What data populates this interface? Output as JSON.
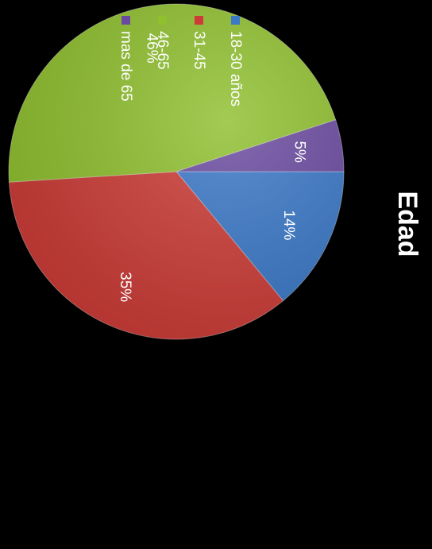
{
  "chart_data": {
    "type": "pie",
    "title": "Edad",
    "categories": [
      "18-30 años",
      "31-45",
      "46-65",
      "mas de 65"
    ],
    "values": [
      14,
      35,
      46,
      5
    ],
    "labels": [
      "14%",
      "35%",
      "46%",
      "5%"
    ],
    "colors": [
      "#3a78c8",
      "#cc3b36",
      "#8fc02e",
      "#6a4aa0"
    ],
    "legend_position": "bottom",
    "rotation": "image rotated 90 degrees clockwise"
  }
}
